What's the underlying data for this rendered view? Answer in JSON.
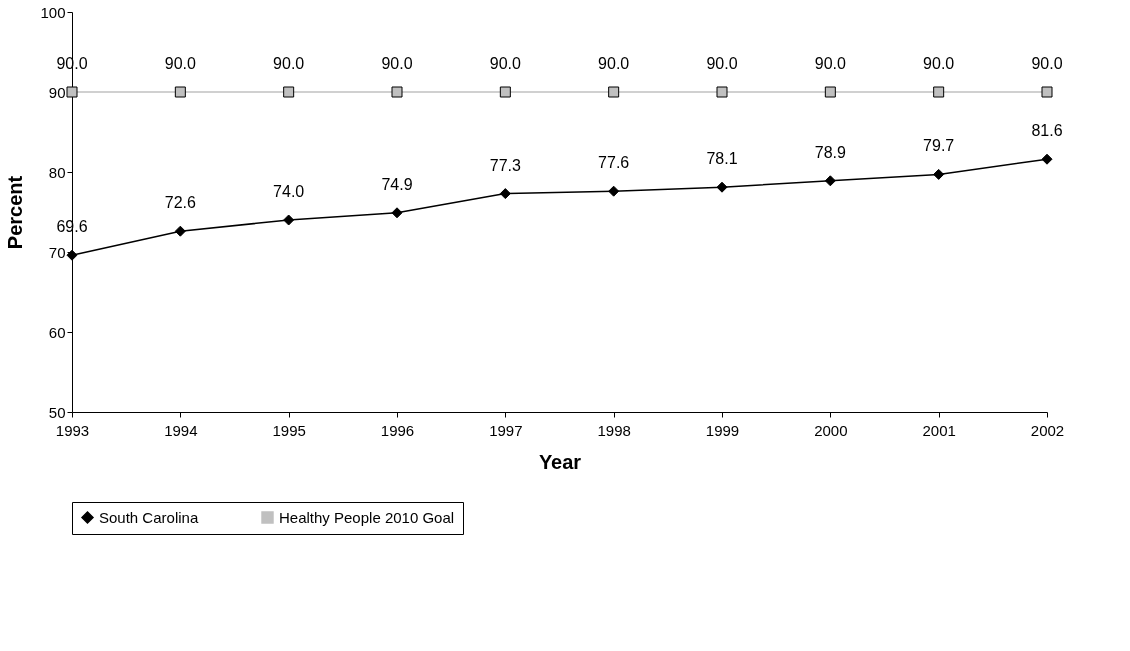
{
  "chart_data": {
    "type": "line",
    "xlabel": "Year",
    "ylabel": "Percent",
    "categories": [
      "1993",
      "1994",
      "1995",
      "1996",
      "1997",
      "1998",
      "1999",
      "2000",
      "2001",
      "2002"
    ],
    "series": [
      {
        "name": "South Carolina",
        "color": "#000000",
        "marker": "diamond",
        "values": [
          69.6,
          72.6,
          74.0,
          74.9,
          77.3,
          77.6,
          78.1,
          78.9,
          79.7,
          81.6
        ],
        "value_labels": [
          "69.6",
          "72.6",
          "74.0",
          "74.9",
          "77.3",
          "77.6",
          "78.1",
          "78.9",
          "79.7",
          "81.6"
        ]
      },
      {
        "name": "Healthy People 2010 Goal",
        "color": "#c0c0c0",
        "marker": "square",
        "values": [
          90,
          90,
          90,
          90,
          90,
          90,
          90,
          90,
          90,
          90
        ],
        "value_labels": [
          "90.0",
          "90.0",
          "90.0",
          "90.0",
          "90.0",
          "90.0",
          "90.0",
          "90.0",
          "90.0",
          "90.0"
        ]
      }
    ],
    "ylim": [
      50,
      100
    ],
    "yticks": [
      50,
      60,
      70,
      80,
      90,
      100
    ],
    "grid": false,
    "legend": "bottom",
    "line_style": "solid"
  }
}
